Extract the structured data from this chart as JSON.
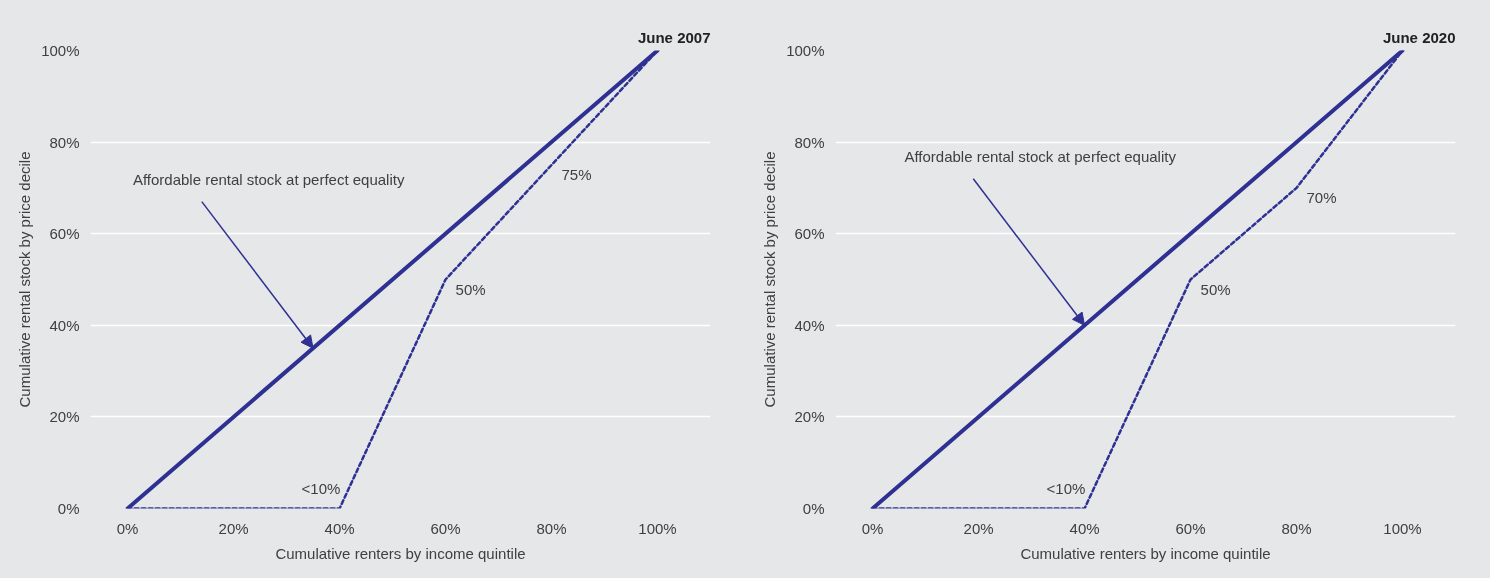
{
  "chart_data": [
    {
      "type": "line",
      "title": "June 2007",
      "xlabel": "Cumulative renters by income quintile",
      "ylabel": "Cumulative rental stock by price decile",
      "xlim": [
        -7,
        110
      ],
      "ylim": [
        0,
        100
      ],
      "xticks": [
        {
          "value": 0,
          "label": "0%"
        },
        {
          "value": 20,
          "label": "20%"
        },
        {
          "value": 40,
          "label": "40%"
        },
        {
          "value": 60,
          "label": "60%"
        },
        {
          "value": 80,
          "label": "80%"
        },
        {
          "value": 100,
          "label": "100%"
        }
      ],
      "yticks": [
        {
          "value": 0,
          "label": "0%"
        },
        {
          "value": 20,
          "label": "20%"
        },
        {
          "value": 40,
          "label": "40%"
        },
        {
          "value": 60,
          "label": "60%"
        },
        {
          "value": 80,
          "label": "80%"
        },
        {
          "value": 100,
          "label": "100%"
        }
      ],
      "grid": "y",
      "series": [
        {
          "color": "#2e3192",
          "line_style": "solid",
          "x": [
            0,
            100
          ],
          "values": [
            0,
            100
          ]
        },
        {
          "color": "#2e3192",
          "line_style": "dashed",
          "x": [
            0,
            40,
            60,
            80,
            100
          ],
          "values": [
            0,
            0,
            50,
            75,
            100
          ]
        }
      ],
      "annotations": [
        {
          "text": "Affordable rental stock at perfect equality",
          "x": 35,
          "y": 35
        },
        {
          "text": "<10%",
          "x": 40,
          "y": 0
        },
        {
          "text": "50%",
          "x": 60,
          "y": 50
        },
        {
          "text": "75%",
          "x": 80,
          "y": 75
        }
      ]
    },
    {
      "type": "line",
      "title": "June 2020",
      "xlabel": "Cumulative renters by income quintile",
      "ylabel": "Cumulative rental stock by price decile",
      "xlim": [
        -7,
        110
      ],
      "ylim": [
        0,
        100
      ],
      "xticks": [
        {
          "value": 0,
          "label": "0%"
        },
        {
          "value": 20,
          "label": "20%"
        },
        {
          "value": 40,
          "label": "40%"
        },
        {
          "value": 60,
          "label": "60%"
        },
        {
          "value": 80,
          "label": "80%"
        },
        {
          "value": 100,
          "label": "100%"
        }
      ],
      "yticks": [
        {
          "value": 0,
          "label": "0%"
        },
        {
          "value": 20,
          "label": "20%"
        },
        {
          "value": 40,
          "label": "40%"
        },
        {
          "value": 60,
          "label": "60%"
        },
        {
          "value": 80,
          "label": "80%"
        },
        {
          "value": 100,
          "label": "100%"
        }
      ],
      "grid": "y",
      "series": [
        {
          "color": "#2e3192",
          "line_style": "solid",
          "x": [
            0,
            100
          ],
          "values": [
            0,
            100
          ]
        },
        {
          "color": "#2e3192",
          "line_style": "dashed",
          "x": [
            0,
            40,
            60,
            80,
            100
          ],
          "values": [
            0,
            0,
            50,
            70,
            100
          ]
        }
      ],
      "annotations": [
        {
          "text": "Affordable rental stock at perfect equality",
          "x": 40,
          "y": 40
        },
        {
          "text": "<10%",
          "x": 40,
          "y": 0
        },
        {
          "text": "50%",
          "x": 60,
          "y": 50
        },
        {
          "text": "70%",
          "x": 80,
          "y": 70
        }
      ]
    }
  ]
}
